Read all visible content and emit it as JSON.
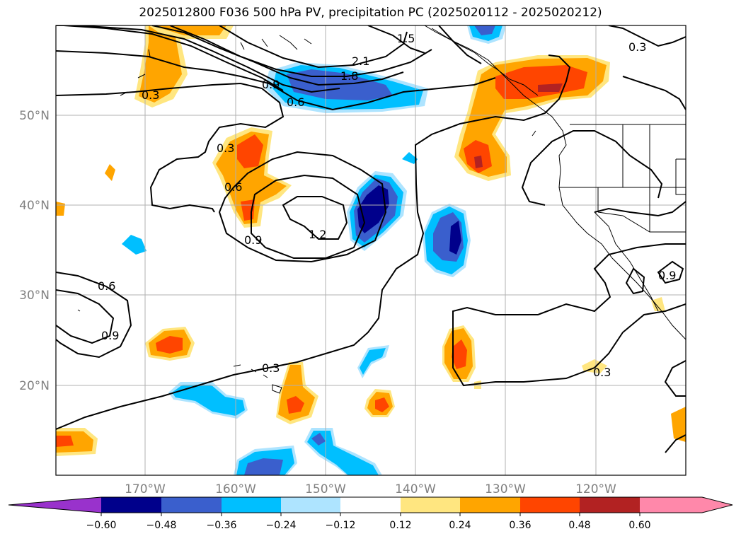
{
  "title": "2025012800 F036 500 hPa PV, precipitation PC (2025020112 - 2025020212)",
  "map": {
    "lat_labels": [
      "50°N",
      "40°N",
      "30°N",
      "20°N"
    ],
    "lon_labels": [
      "170°W",
      "160°W",
      "150°W",
      "140°W",
      "130°W",
      "120°W"
    ],
    "contour_labels": [
      "0.3",
      "0.6",
      "0.9",
      "1.2",
      "1.5",
      "1.8",
      "2.1"
    ],
    "contour_color": "#000000",
    "gridlines": true
  },
  "colorbar": {
    "ticks": [
      "−0.60",
      "−0.48",
      "−0.36",
      "−0.24",
      "−0.12",
      "0.12",
      "0.24",
      "0.36",
      "0.48",
      "0.60"
    ],
    "colors": {
      "below": "#9932cc",
      "b1": "#00008b",
      "b2": "#3a5fcd",
      "b3": "#00bfff",
      "b4": "#aee4ff",
      "b5": "#ffffff",
      "b6": "#ffe680",
      "b7": "#ffa500",
      "b8": "#ff4500",
      "b9": "#b22222",
      "above": "#ff88aa"
    }
  }
}
